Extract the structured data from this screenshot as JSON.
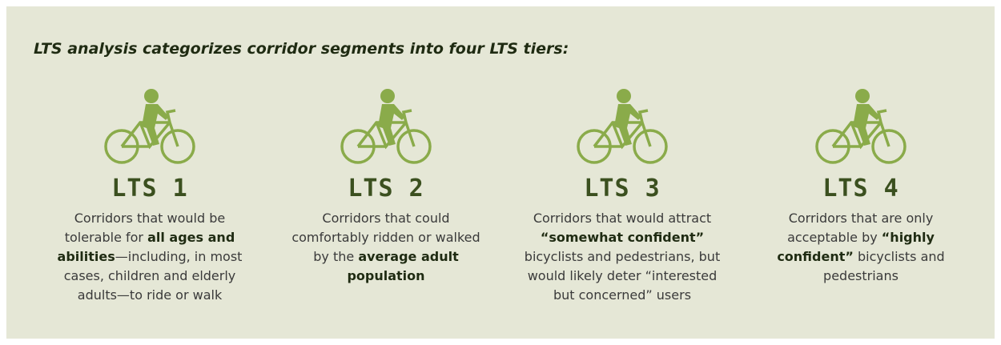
{
  "title": "LTS analysis categorizes corridor segments into four LTS tiers:",
  "tiers": [
    {
      "label": "LTS 1",
      "description": [
        {
          "text": "Corridors that would be tolerable for ",
          "bold": false
        },
        {
          "text": "all ages and abilities",
          "bold": true
        },
        {
          "text": "—including, in most cases, children and elderly adults—to ride or walk",
          "bold": false
        }
      ]
    },
    {
      "label": "LTS 2",
      "description": [
        {
          "text": "Corridors that could comfortably ridden or walked by the ",
          "bold": false
        },
        {
          "text": "average adult population",
          "bold": true
        }
      ]
    },
    {
      "label": "LTS 3",
      "description": [
        {
          "text": "Corridors that would attract ",
          "bold": false
        },
        {
          "text": "“somewhat confident”",
          "bold": true
        },
        {
          "text": " bicyclists and pedestrians, but would likely deter “interested but concerned” users",
          "bold": false
        }
      ]
    },
    {
      "label": "LTS 4",
      "description": [
        {
          "text": "Corridors that are only acceptable by ",
          "bold": false
        },
        {
          "text": "“highly confident”",
          "bold": true
        },
        {
          "text": " bicyclists and pedestrians",
          "bold": false
        }
      ]
    }
  ]
}
